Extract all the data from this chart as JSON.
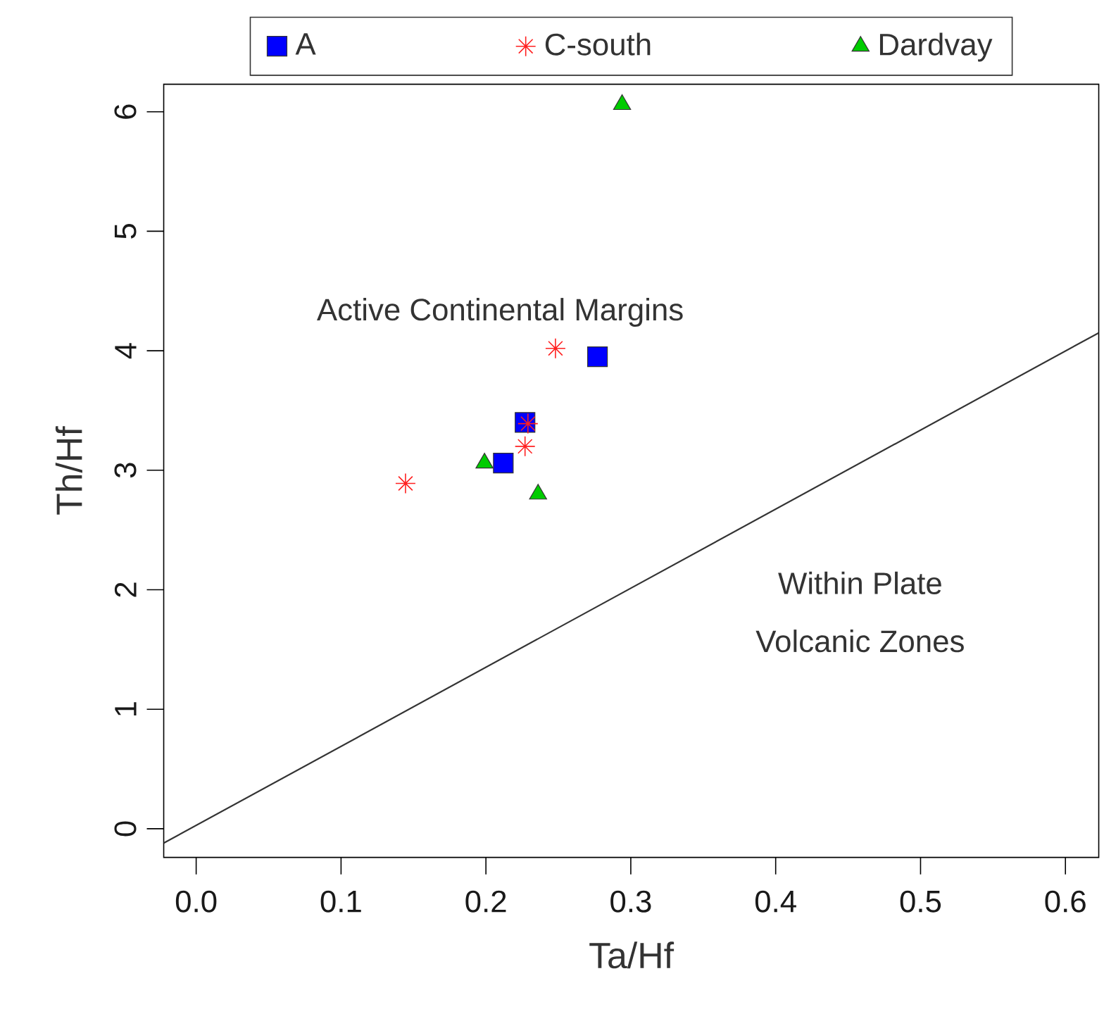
{
  "chart_data": {
    "type": "scatter",
    "xlabel": "Ta/Hf",
    "ylabel": "Th/Hf",
    "xlim": [
      -0.0224,
      0.623
    ],
    "ylim": [
      -0.24,
      6.23
    ],
    "xticks": [
      {
        "value": 0,
        "label": "0.0"
      },
      0.1,
      0.2,
      0.3,
      0.4,
      0.5,
      0.6
    ],
    "yticks": [
      0,
      1,
      2,
      3,
      4,
      5,
      6
    ],
    "legend": "top",
    "grid": false,
    "series": [
      {
        "name": "A",
        "color": "#0000ff",
        "marker": "square",
        "x": [
          0.277,
          0.227,
          0.212
        ],
        "values": [
          3.95,
          3.4,
          3.06
        ]
      },
      {
        "name": "C-south",
        "color": "#ff2020",
        "marker": "cross",
        "x": [
          0.248,
          0.229,
          0.227,
          0.1445
        ],
        "values": [
          4.02,
          3.39,
          3.2,
          2.89
        ]
      },
      {
        "name": "Dardvay",
        "color": "#00cc00",
        "marker": "triangle",
        "x": [
          0.199,
          0.236,
          0.294
        ],
        "values": [
          3.06,
          2.8,
          6.06
        ]
      },
      {
        "type": "line",
        "color": "#333333",
        "marker": "none",
        "x": [
          -0.0224,
          0.623
        ],
        "values": [
          -0.12,
          4.15
        ]
      }
    ],
    "annotations": [
      "Active Continental Margins",
      "Within Plate",
      "Volcanic Zones"
    ]
  }
}
